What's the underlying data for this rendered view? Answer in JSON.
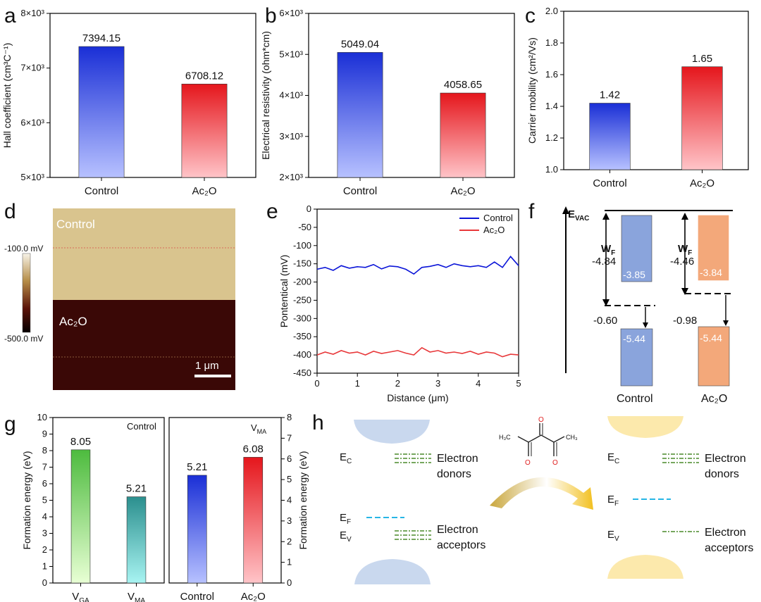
{
  "panel_letters": [
    "a",
    "b",
    "c",
    "d",
    "e",
    "f",
    "g",
    "h"
  ],
  "colors": {
    "control_gradient": [
      "#1a2fd6",
      "#b7c1ff"
    ],
    "ac2o_gradient": [
      "#e5161c",
      "#ffc4c8"
    ],
    "vga_gradient": [
      "#4dbb3e",
      "#e8ffd4"
    ],
    "vma_gradient": [
      "#2b8f8e",
      "#a8f4f2"
    ],
    "kpfm_light": "#d9c48e",
    "kpfm_dark": "#3a0806",
    "line_control": "#0b15d8",
    "line_ac2o": "#e8383a",
    "energy_control": "#8aa4dc",
    "energy_ac2o": "#f3a87a",
    "dopant_green": "#4a8a2a",
    "ef_cyan": "#27b6e6",
    "band_blue": "#c9d8ee",
    "band_yellow": "#fce9ac"
  },
  "chart_data": [
    {
      "panel": "a",
      "type": "bar",
      "categories": [
        "Control",
        "Ac₂O"
      ],
      "values": [
        7394.15,
        6708.12
      ],
      "value_labels": [
        "7394.15",
        "6708.12"
      ],
      "ylabel": "Hall coefficient (cm³C⁻¹)",
      "ylim": [
        5000,
        8000
      ],
      "yticks": [
        5000,
        6000,
        7000,
        8000
      ],
      "ytick_labels": [
        "5×10³",
        "6×10³",
        "7×10³",
        "8×10³"
      ]
    },
    {
      "panel": "b",
      "type": "bar",
      "categories": [
        "Control",
        "Ac₂O"
      ],
      "values": [
        5049.04,
        4058.65
      ],
      "value_labels": [
        "5049.04",
        "4058.65"
      ],
      "ylabel": "Electrical resistivity (ohm*cm)",
      "ylim": [
        2000,
        6000
      ],
      "yticks": [
        2000,
        3000,
        4000,
        5000,
        6000
      ],
      "ytick_labels": [
        "2×10³",
        "3×10³",
        "4×10³",
        "5×10³",
        "6×10³"
      ]
    },
    {
      "panel": "c",
      "type": "bar",
      "categories": [
        "Control",
        "Ac₂O"
      ],
      "values": [
        1.42,
        1.65
      ],
      "value_labels": [
        "1.42",
        "1.65"
      ],
      "ylabel": "Carrier mobility (cm²/Vs)",
      "ylim": [
        1.0,
        2.0
      ],
      "yticks": [
        1.0,
        1.2,
        1.4,
        1.6,
        1.8,
        2.0
      ],
      "ytick_labels": [
        "1.0",
        "1.2",
        "1.4",
        "1.6",
        "1.8",
        "2.0"
      ]
    },
    {
      "panel": "e",
      "type": "line",
      "xlabel": "Distance (μm)",
      "ylabel": "Pontentical (mV)",
      "xlim": [
        0,
        5
      ],
      "ylim": [
        -450,
        0
      ],
      "xticks": [
        0,
        1,
        2,
        3,
        4,
        5
      ],
      "yticks": [
        0,
        -50,
        -100,
        -150,
        -200,
        -250,
        -300,
        -350,
        -400,
        -450
      ],
      "legend_position": "top-right",
      "series": [
        {
          "name": "Control",
          "x": [
            0,
            0.2,
            0.4,
            0.6,
            0.8,
            1.0,
            1.2,
            1.4,
            1.6,
            1.8,
            2.0,
            2.2,
            2.4,
            2.6,
            2.8,
            3.0,
            3.2,
            3.4,
            3.6,
            3.8,
            4.0,
            4.2,
            4.4,
            4.6,
            4.8,
            5.0
          ],
          "y": [
            -165,
            -160,
            -168,
            -155,
            -162,
            -158,
            -160,
            -152,
            -164,
            -156,
            -158,
            -165,
            -178,
            -160,
            -157,
            -152,
            -160,
            -150,
            -155,
            -158,
            -155,
            -160,
            -145,
            -160,
            -130,
            -155
          ]
        },
        {
          "name": "Ac₂O",
          "x": [
            0,
            0.2,
            0.4,
            0.6,
            0.8,
            1.0,
            1.2,
            1.4,
            1.6,
            1.8,
            2.0,
            2.2,
            2.4,
            2.6,
            2.8,
            3.0,
            3.2,
            3.4,
            3.6,
            3.8,
            4.0,
            4.2,
            4.4,
            4.6,
            4.8,
            5.0
          ],
          "y": [
            -400,
            -392,
            -398,
            -388,
            -395,
            -392,
            -400,
            -390,
            -396,
            -392,
            -388,
            -395,
            -400,
            -380,
            -392,
            -388,
            -395,
            -392,
            -396,
            -390,
            -398,
            -392,
            -395,
            -405,
            -398,
            -400
          ]
        }
      ]
    },
    {
      "panel": "g-left",
      "type": "bar",
      "categories": [
        "V_GA",
        "V_MA"
      ],
      "category_main": [
        "V",
        "V"
      ],
      "category_sub": [
        "GA",
        "MA"
      ],
      "values": [
        8.05,
        5.21
      ],
      "value_labels": [
        "8.05",
        "5.21"
      ],
      "ylabel": "Formation energy (eV)",
      "ylim": [
        0,
        10
      ],
      "yticks": [
        0,
        1,
        2,
        3,
        4,
        5,
        6,
        7,
        8,
        9,
        10
      ],
      "annotation": "Control"
    },
    {
      "panel": "g-right",
      "type": "bar",
      "categories": [
        "Control",
        "Ac₂O"
      ],
      "values": [
        5.21,
        6.08
      ],
      "value_labels": [
        "5.21",
        "6.08"
      ],
      "ylabel": "Formation energy (eV)",
      "ylim": [
        0,
        8
      ],
      "yticks": [
        0,
        1,
        2,
        3,
        4,
        5,
        6,
        7,
        8
      ],
      "annotation_main": "V",
      "annotation_sub": "MA"
    }
  ],
  "panel_d": {
    "label_control": "Control",
    "label_ac2o": "Ac₂O",
    "colorbar_top": "-100.0 mV",
    "colorbar_bottom": "-500.0 mV",
    "scalebar": "1 μm"
  },
  "panel_f": {
    "evac_main": "E",
    "evac_sub": "VAC",
    "wf_main": "W",
    "wf_sub": "F",
    "control_wf": "-4.84",
    "ac2o_wf": "-4.46",
    "control_cbm": "-3.85",
    "ac2o_cbm": "-3.84",
    "control_gap": "-0.60",
    "ac2o_gap": "-0.98",
    "control_vbm": "-5.44",
    "ac2o_vbm": "-5.44",
    "label_control": "Control",
    "label_ac2o": "Ac₂O"
  },
  "panel_h": {
    "ec_main": "E",
    "ec_sub": "C",
    "ef_main": "E",
    "ef_sub": "F",
    "ev_main": "E",
    "ev_sub": "V",
    "donors_line1": "Electron",
    "donors_line2": "donors",
    "acceptors_line1": "Electron",
    "acceptors_line2": "acceptors",
    "mol_left": "H₃C",
    "mol_right": "CH₃",
    "mol_o": "O"
  }
}
